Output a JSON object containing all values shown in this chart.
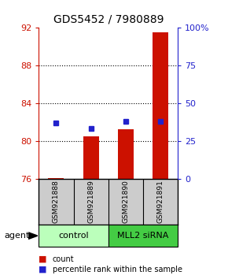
{
  "title": "GDS5452 / 7980889",
  "categories": [
    "GSM921888",
    "GSM921889",
    "GSM921890",
    "GSM921891"
  ],
  "bar_values": [
    76.05,
    80.5,
    81.2,
    91.5
  ],
  "percentile_values": [
    37,
    33,
    38,
    38
  ],
  "bar_color": "#cc1100",
  "percentile_color": "#2222cc",
  "ylim_left": [
    76,
    92
  ],
  "ylim_right": [
    0,
    100
  ],
  "yticks_left": [
    76,
    80,
    84,
    88,
    92
  ],
  "yticks_right": [
    0,
    25,
    50,
    75,
    100
  ],
  "ytick_labels_right": [
    "0",
    "25",
    "50",
    "75",
    "100%"
  ],
  "grid_ticks": [
    80,
    84,
    88
  ],
  "bar_bottom": 76,
  "groups": [
    {
      "label": "control",
      "indices": [
        0,
        1
      ],
      "color": "#bbffbb"
    },
    {
      "label": "MLL2 siRNA",
      "indices": [
        2,
        3
      ],
      "color": "#44cc44"
    }
  ],
  "agent_label": "agent",
  "legend_items": [
    {
      "color": "#cc1100",
      "label": "count"
    },
    {
      "color": "#2222cc",
      "label": "percentile rank within the sample"
    }
  ],
  "sample_box_color": "#cccccc",
  "background_color": "#ffffff"
}
